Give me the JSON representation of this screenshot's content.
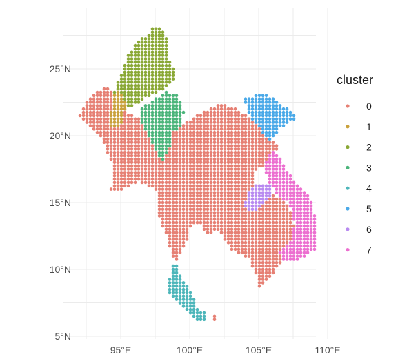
{
  "chart_data": {
    "type": "scatter",
    "subtype": "geographic-dot-map",
    "x_axis": {
      "ticks": [
        95,
        100,
        105,
        110
      ],
      "tick_labels": [
        "95°E",
        "100°E",
        "105°E",
        "110°E"
      ],
      "range": [
        91.7,
        110.1
      ]
    },
    "y_axis": {
      "ticks": [
        5,
        10,
        15,
        20,
        25
      ],
      "tick_labels": [
        "5°N",
        "10°N",
        "15°N",
        "20°N",
        "25°N"
      ],
      "range": [
        4.8,
        28.5
      ]
    },
    "grid": true,
    "legend": {
      "title": "cluster",
      "placement": "right",
      "entries": [
        {
          "label": "0",
          "color": "#E68074"
        },
        {
          "label": "1",
          "color": "#C9A13C"
        },
        {
          "label": "2",
          "color": "#8AA835"
        },
        {
          "label": "3",
          "color": "#4BB47A"
        },
        {
          "label": "4",
          "color": "#4DB6BA"
        },
        {
          "label": "5",
          "color": "#4AA9E8"
        },
        {
          "label": "6",
          "color": "#B88AF0"
        },
        {
          "label": "7",
          "color": "#EC6FD0"
        }
      ]
    },
    "grid_step_deg": 0.25,
    "regions": [
      {
        "cluster": "0",
        "polygon": [
          [
            92.0,
            21.4
          ],
          [
            92.5,
            22.6
          ],
          [
            93.2,
            23.2
          ],
          [
            93.8,
            23.7
          ],
          [
            94.6,
            23.2
          ],
          [
            95.2,
            21.9
          ],
          [
            96.0,
            21.4
          ],
          [
            97.2,
            21.0
          ],
          [
            98.2,
            20.6
          ],
          [
            99.3,
            20.6
          ],
          [
            100.3,
            21.4
          ],
          [
            101.2,
            21.9
          ],
          [
            102.1,
            22.4
          ],
          [
            103.2,
            22.1
          ],
          [
            104.0,
            21.6
          ],
          [
            104.6,
            21.4
          ],
          [
            105.6,
            20.4
          ],
          [
            106.5,
            19.1
          ],
          [
            105.8,
            18.1
          ],
          [
            104.8,
            17.3
          ],
          [
            104.8,
            16.4
          ],
          [
            106.3,
            15.5
          ],
          [
            107.2,
            14.9
          ],
          [
            107.6,
            13.2
          ],
          [
            107.5,
            12.2
          ],
          [
            106.7,
            11.2
          ],
          [
            106.6,
            10.5
          ],
          [
            105.6,
            9.1
          ],
          [
            104.9,
            8.6
          ],
          [
            104.8,
            9.6
          ],
          [
            104.3,
            10.8
          ],
          [
            103.2,
            11.3
          ],
          [
            102.6,
            12.1
          ],
          [
            102.2,
            12.8
          ],
          [
            101.1,
            12.7
          ],
          [
            100.9,
            13.5
          ],
          [
            100.1,
            13.4
          ],
          [
            99.9,
            12.3
          ],
          [
            99.3,
            11.1
          ],
          [
            98.9,
            10.5
          ],
          [
            98.7,
            11.0
          ],
          [
            98.4,
            12.4
          ],
          [
            97.9,
            13.5
          ],
          [
            97.6,
            14.8
          ],
          [
            97.7,
            15.7
          ],
          [
            96.8,
            16.4
          ],
          [
            96.2,
            16.6
          ],
          [
            95.6,
            16.1
          ],
          [
            95.0,
            15.9
          ],
          [
            94.3,
            16.0
          ],
          [
            94.5,
            17.6
          ],
          [
            93.9,
            19.1
          ],
          [
            93.5,
            19.9
          ],
          [
            92.7,
            20.6
          ]
        ]
      },
      {
        "cluster": "4",
        "polygon": [
          [
            98.7,
            10.4
          ],
          [
            99.1,
            10.3
          ],
          [
            99.3,
            9.6
          ],
          [
            99.6,
            9.0
          ],
          [
            100.2,
            8.3
          ],
          [
            100.4,
            7.4
          ],
          [
            100.7,
            7.0
          ],
          [
            101.2,
            6.7
          ],
          [
            101.3,
            6.2
          ],
          [
            100.8,
            6.1
          ],
          [
            100.4,
            6.3
          ],
          [
            100.0,
            6.7
          ],
          [
            99.6,
            7.0
          ],
          [
            99.3,
            7.4
          ],
          [
            98.7,
            8.0
          ],
          [
            98.4,
            8.3
          ],
          [
            98.3,
            8.9
          ],
          [
            98.6,
            9.4
          ],
          [
            98.6,
            10.0
          ]
        ]
      },
      {
        "cluster": "2",
        "polygon": [
          [
            95.2,
            25.1
          ],
          [
            95.6,
            26.2
          ],
          [
            96.3,
            27.2
          ],
          [
            97.0,
            27.6
          ],
          [
            97.4,
            28.3
          ],
          [
            97.9,
            28.0
          ],
          [
            98.4,
            27.3
          ],
          [
            98.3,
            26.3
          ],
          [
            98.6,
            25.6
          ],
          [
            99.0,
            24.6
          ],
          [
            98.8,
            24.1
          ],
          [
            98.0,
            23.4
          ],
          [
            96.5,
            22.6
          ],
          [
            95.8,
            22.2
          ],
          [
            95.2,
            21.9
          ],
          [
            94.8,
            22.5
          ],
          [
            94.4,
            23.0
          ],
          [
            94.8,
            24.0
          ]
        ]
      },
      {
        "cluster": "1",
        "polygon": [
          [
            94.3,
            20.6
          ],
          [
            94.7,
            20.5
          ],
          [
            95.2,
            21.2
          ],
          [
            95.4,
            22.4
          ],
          [
            94.9,
            23.5
          ],
          [
            94.5,
            23.2
          ],
          [
            94.3,
            21.8
          ]
        ]
      },
      {
        "cluster": "3",
        "polygon": [
          [
            96.5,
            22.0
          ],
          [
            97.2,
            22.6
          ],
          [
            98.3,
            23.3
          ],
          [
            99.1,
            23.0
          ],
          [
            99.6,
            21.8
          ],
          [
            99.3,
            20.6
          ],
          [
            98.6,
            20.2
          ],
          [
            98.7,
            19.5
          ],
          [
            98.1,
            18.2
          ],
          [
            97.7,
            18.6
          ],
          [
            97.2,
            19.6
          ],
          [
            96.8,
            20.4
          ],
          [
            96.4,
            21.2
          ]
        ]
      },
      {
        "cluster": "5",
        "polygon": [
          [
            104.0,
            22.8
          ],
          [
            104.6,
            23.0
          ],
          [
            105.3,
            23.2
          ],
          [
            106.0,
            22.9
          ],
          [
            106.7,
            22.3
          ],
          [
            107.6,
            21.6
          ],
          [
            107.8,
            21.3
          ],
          [
            106.9,
            20.8
          ],
          [
            106.5,
            20.5
          ],
          [
            105.9,
            19.6
          ],
          [
            105.5,
            20.0
          ],
          [
            104.8,
            20.8
          ],
          [
            104.3,
            21.7
          ],
          [
            104.0,
            22.4
          ]
        ]
      },
      {
        "cluster": "6",
        "polygon": [
          [
            104.0,
            14.8
          ],
          [
            104.2,
            15.8
          ],
          [
            105.0,
            16.4
          ],
          [
            105.8,
            16.3
          ],
          [
            105.9,
            15.6
          ],
          [
            105.4,
            15.1
          ],
          [
            104.9,
            14.4
          ],
          [
            104.3,
            14.4
          ]
        ]
      },
      {
        "cluster": "7",
        "polygon": [
          [
            105.7,
            18.6
          ],
          [
            106.2,
            18.9
          ],
          [
            106.7,
            18.0
          ],
          [
            107.4,
            16.9
          ],
          [
            108.2,
            16.0
          ],
          [
            108.8,
            15.2
          ],
          [
            109.1,
            14.0
          ],
          [
            109.3,
            12.5
          ],
          [
            109.2,
            11.6
          ],
          [
            108.6,
            11.1
          ],
          [
            107.6,
            10.6
          ],
          [
            106.7,
            10.5
          ],
          [
            106.5,
            11.3
          ],
          [
            107.4,
            12.1
          ],
          [
            107.6,
            13.4
          ],
          [
            107.2,
            14.9
          ],
          [
            106.3,
            15.6
          ],
          [
            105.6,
            16.8
          ],
          [
            105.4,
            17.9
          ]
        ]
      },
      {
        "cluster": "0",
        "polygon": [
          [
            101.8,
            6.6
          ],
          [
            102.0,
            6.2
          ],
          [
            101.7,
            6.0
          ],
          [
            101.5,
            6.4
          ]
        ]
      }
    ]
  }
}
